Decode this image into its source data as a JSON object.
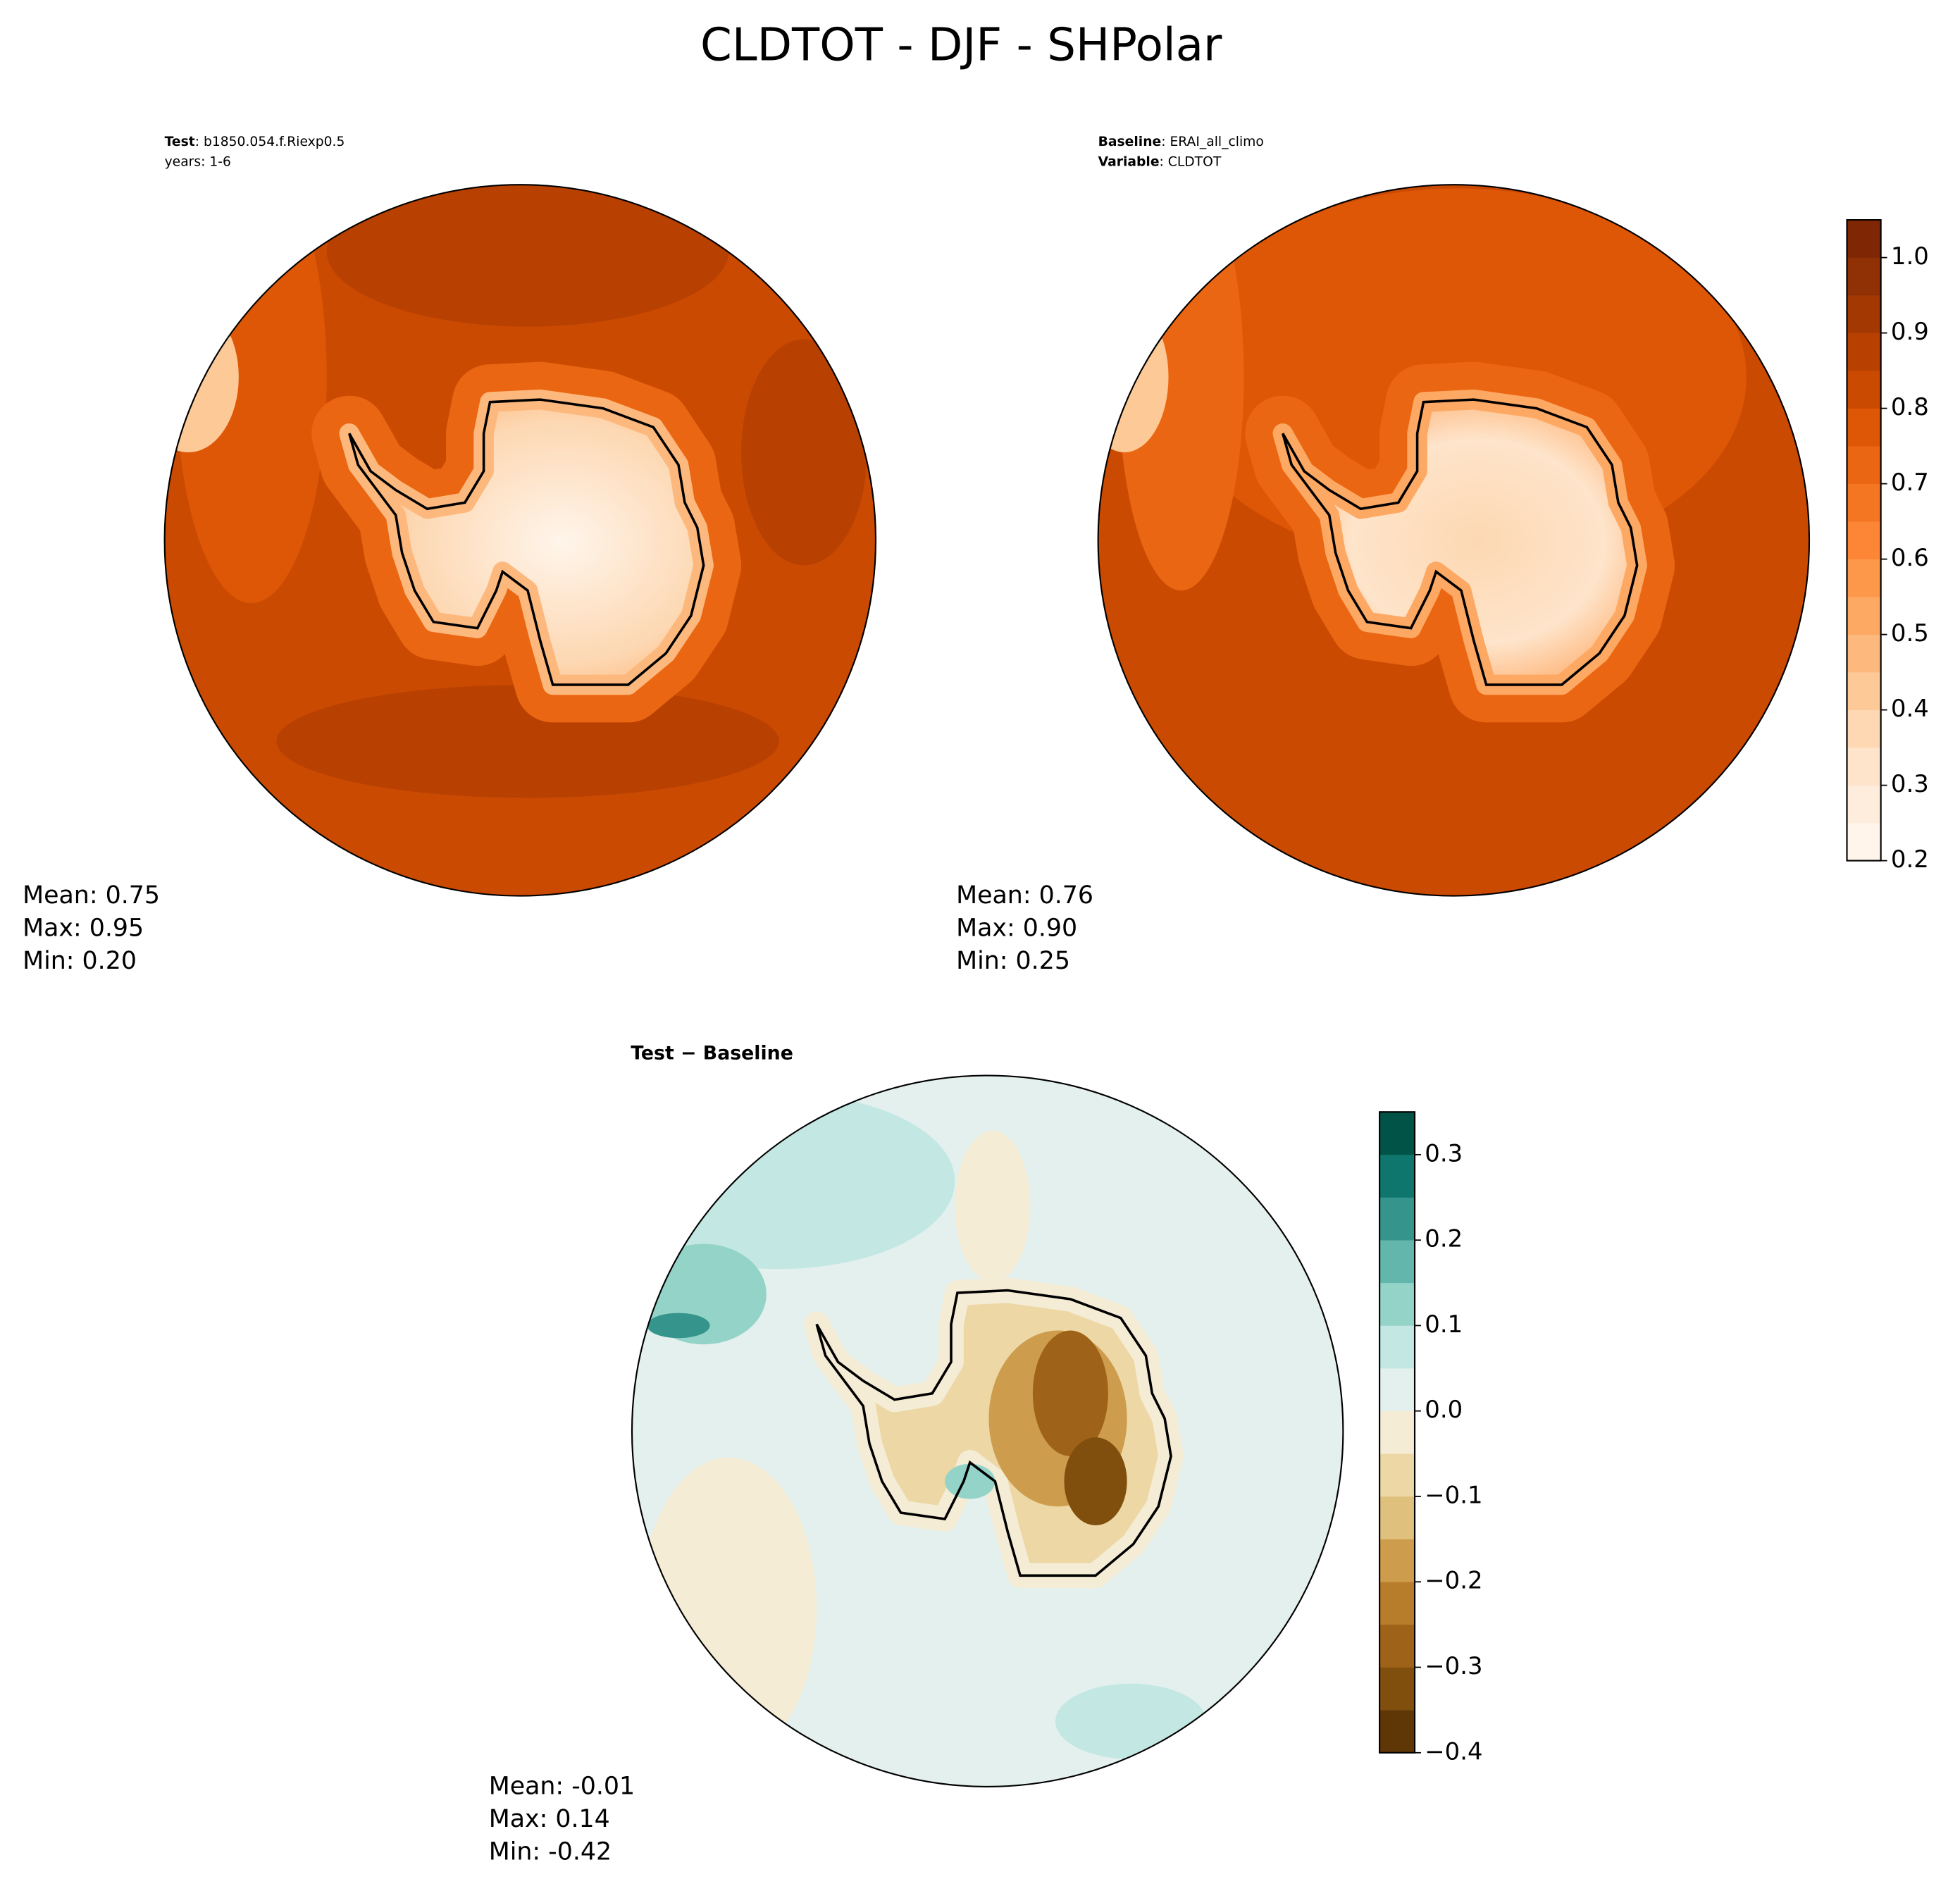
{
  "title": "CLDTOT - DJF - SHPolar",
  "panels": [
    {
      "header": [
        {
          "bold": "Test",
          "text": ": b1850.054.f.Riexp0.5"
        },
        {
          "text": "years: 1-6"
        }
      ],
      "stats": [
        "Mean:  0.75",
        "Max:  0.95",
        "Min:  0.20"
      ]
    },
    {
      "header": [
        {
          "bold": "Baseline",
          "text": ": ERAI_all_climo"
        },
        {
          "bold": "Variable",
          "text": ": CLDTOT"
        }
      ],
      "stats": [
        "Mean:  0.76",
        "Max:  0.90",
        "Min:  0.25"
      ]
    },
    {
      "header": [
        {
          "bold": "Test − Baseline"
        }
      ],
      "stats": [
        "Mean: -0.01",
        "Max:  0.14",
        "Min: -0.42"
      ]
    }
  ],
  "colorbars": [
    {
      "levels": [
        0.2,
        0.25,
        0.3,
        0.35,
        0.4,
        0.45,
        0.5,
        0.55,
        0.6,
        0.65,
        0.7,
        0.75,
        0.8,
        0.85,
        0.9,
        0.95,
        1.0,
        1.05
      ],
      "colors": [
        "#fff5eb",
        "#feeddc",
        "#fee4ca",
        "#fdd8b3",
        "#fdc997",
        "#fdb97d",
        "#fda863",
        "#fd984b",
        "#fc8636",
        "#f57622",
        "#eb6612",
        "#de5707",
        "#cb4a02",
        "#b84102",
        "#a33803",
        "#8f3104",
        "#7f2704"
      ],
      "ticks": [
        0.2,
        0.3,
        0.4,
        0.5,
        0.6,
        0.7,
        0.8,
        0.9,
        {
          "value": 1.0,
          "label": "1.0"
        }
      ]
    },
    {
      "levels": [
        -0.4,
        -0.35,
        -0.3,
        -0.25,
        -0.2,
        -0.15,
        -0.1,
        -0.05,
        0.0,
        0.05,
        0.1,
        0.15,
        0.2,
        0.25,
        0.3,
        0.35
      ],
      "colors": [
        "#5f3606",
        "#804f0e",
        "#9e6318",
        "#b77d2b",
        "#cd9c4c",
        "#dfc07c",
        "#ecd7a5",
        "#f5ecd5",
        "#e4f0ee",
        "#c3e7e2",
        "#94d3c8",
        "#63b6ab",
        "#35958c",
        "#0f766d",
        "#005346"
      ],
      "ticks": [
        {
          "value": -0.4,
          "label": "−0.4"
        },
        {
          "value": -0.3,
          "label": "−0.3"
        },
        {
          "value": -0.2,
          "label": "−0.2"
        },
        {
          "value": -0.1,
          "label": "−0.1"
        },
        {
          "value": 0.0,
          "label": "0.0"
        },
        0.1,
        0.2,
        0.3
      ]
    }
  ]
}
